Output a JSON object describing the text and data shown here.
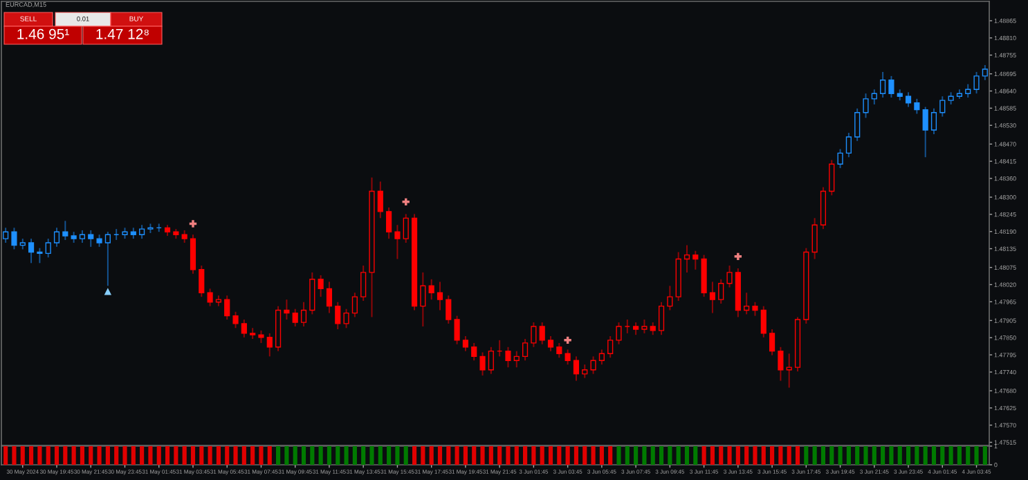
{
  "chart_data": [
    {
      "type": "candlestick",
      "title": "EURCAD,M15",
      "annotations": [
        "SELL",
        "0.01",
        "BUY",
        "1.46 95¹",
        "1.47 12⁸"
      ],
      "categories": [
        null,
        null,
        null,
        null,
        null,
        null,
        null,
        null,
        null,
        null,
        null,
        null,
        null,
        null,
        null,
        null,
        null,
        null,
        null,
        null,
        null,
        null,
        null,
        null,
        null,
        null,
        null,
        null,
        null,
        null,
        null,
        null,
        null,
        null,
        null,
        null,
        null,
        null,
        null,
        null,
        null,
        null,
        null,
        null,
        null,
        null,
        null,
        null,
        null,
        null,
        null,
        null,
        null,
        null,
        null,
        null,
        null,
        null,
        null,
        null,
        null,
        null,
        null,
        null,
        null,
        null,
        null,
        null,
        null,
        null,
        null,
        null,
        null,
        null,
        null,
        null,
        null,
        null,
        null,
        null,
        null,
        null,
        null,
        null,
        null,
        null,
        null,
        null,
        null,
        null,
        null,
        null,
        null,
        null,
        null,
        null,
        null,
        null,
        null,
        null,
        null,
        null,
        null,
        null,
        null,
        null,
        null,
        null,
        null,
        null,
        null,
        null,
        null,
        null,
        null,
        null
      ],
      "ohlc": [
        [
          1.48167,
          1.48202,
          1.48154,
          1.48189
        ],
        [
          1.48189,
          1.48202,
          1.48133,
          1.48146
        ],
        [
          1.48146,
          1.48167,
          1.48133,
          1.48154
        ],
        [
          1.48154,
          1.48167,
          1.48089,
          1.48124
        ],
        [
          1.48124,
          1.48137,
          1.48089,
          1.4812
        ],
        [
          1.4812,
          1.48167,
          1.48107,
          1.48154
        ],
        [
          1.48154,
          1.48202,
          1.48141,
          1.48189
        ],
        [
          1.48189,
          1.48224,
          1.48163,
          1.48176
        ],
        [
          1.48176,
          1.48189,
          1.48154,
          1.48167
        ],
        [
          1.48167,
          1.48194,
          1.48154,
          1.4818
        ],
        [
          1.4818,
          1.48194,
          1.48141,
          1.48167
        ],
        [
          1.48167,
          1.4818,
          1.48141,
          1.48154
        ],
        [
          1.48154,
          1.48189,
          1.48016,
          1.4818
        ],
        [
          1.4818,
          1.48198,
          1.48163,
          1.4818
        ],
        [
          1.4818,
          1.48202,
          1.48167,
          1.48189
        ],
        [
          1.48189,
          1.48202,
          1.48167,
          1.4818
        ],
        [
          1.4818,
          1.48211,
          1.48167,
          1.48198
        ],
        [
          1.48198,
          1.48215,
          1.48185,
          1.48202
        ],
        [
          1.48202,
          1.48215,
          1.48189,
          1.48202
        ],
        [
          1.48202,
          1.48211,
          1.48176,
          1.48189
        ],
        [
          1.48189,
          1.48198,
          1.48167,
          1.4818
        ],
        [
          1.4818,
          1.48194,
          1.48154,
          1.48167
        ],
        [
          1.48167,
          1.4818,
          1.48055,
          1.48068
        ],
        [
          1.48068,
          1.48081,
          1.47981,
          1.47994
        ],
        [
          1.47994,
          1.48007,
          1.47951,
          1.47964
        ],
        [
          1.47964,
          1.47985,
          1.47951,
          1.47972
        ],
        [
          1.47972,
          1.47985,
          1.47908,
          1.4792
        ],
        [
          1.4792,
          1.47933,
          1.47881,
          1.47895
        ],
        [
          1.47895,
          1.47908,
          1.47851,
          1.47864
        ],
        [
          1.47864,
          1.47881,
          1.47846,
          1.47859
        ],
        [
          1.47859,
          1.47873,
          1.47833,
          1.47851
        ],
        [
          1.47851,
          1.47864,
          1.4779,
          1.4782
        ],
        [
          1.4782,
          1.47951,
          1.47807,
          1.47938
        ],
        [
          1.47938,
          1.47972,
          1.47908,
          1.47929
        ],
        [
          1.47929,
          1.47942,
          1.47886,
          1.47899
        ],
        [
          1.47899,
          1.47964,
          1.47886,
          1.47938
        ],
        [
          1.47938,
          1.48059,
          1.47925,
          1.48037
        ],
        [
          1.48037,
          1.4805,
          1.47981,
          1.48007
        ],
        [
          1.48007,
          1.48029,
          1.47929,
          1.47951
        ],
        [
          1.47951,
          1.47964,
          1.47877,
          1.47895
        ],
        [
          1.47895,
          1.47942,
          1.47881,
          1.47929
        ],
        [
          1.47929,
          1.47994,
          1.47916,
          1.47981
        ],
        [
          1.47981,
          1.48081,
          1.47968,
          1.48059
        ],
        [
          1.48059,
          1.48363,
          1.47916,
          1.48319
        ],
        [
          1.48319,
          1.4835,
          1.48233,
          1.48254
        ],
        [
          1.48254,
          1.48267,
          1.48167,
          1.48189
        ],
        [
          1.48189,
          1.48211,
          1.48102,
          1.48167
        ],
        [
          1.48167,
          1.48246,
          1.48154,
          1.48233
        ],
        [
          1.48233,
          1.48246,
          1.47938,
          1.47951
        ],
        [
          1.47951,
          1.48059,
          1.47886,
          1.48016
        ],
        [
          1.48016,
          1.48037,
          1.47972,
          1.47994
        ],
        [
          1.47994,
          1.48029,
          1.47938,
          1.47972
        ],
        [
          1.47972,
          1.47985,
          1.47895,
          1.47908
        ],
        [
          1.47908,
          1.4792,
          1.47829,
          1.47842
        ],
        [
          1.47842,
          1.47855,
          1.47807,
          1.4782
        ],
        [
          1.4782,
          1.47833,
          1.47777,
          1.4779
        ],
        [
          1.4779,
          1.47803,
          1.47729,
          1.47747
        ],
        [
          1.47747,
          1.4782,
          1.47734,
          1.47807
        ],
        [
          1.47807,
          1.47842,
          1.4779,
          1.47807
        ],
        [
          1.47807,
          1.4782,
          1.47755,
          1.47777
        ],
        [
          1.47777,
          1.47807,
          1.47755,
          1.4779
        ],
        [
          1.4779,
          1.47846,
          1.47777,
          1.47833
        ],
        [
          1.47833,
          1.47899,
          1.4782,
          1.47886
        ],
        [
          1.47886,
          1.47899,
          1.47829,
          1.47842
        ],
        [
          1.47842,
          1.47855,
          1.47807,
          1.4782
        ],
        [
          1.4782,
          1.47833,
          1.47786,
          1.47799
        ],
        [
          1.47799,
          1.47812,
          1.47764,
          1.47777
        ],
        [
          1.47777,
          1.4779,
          1.47712,
          1.47734
        ],
        [
          1.47734,
          1.47764,
          1.47721,
          1.47747
        ],
        [
          1.47747,
          1.4779,
          1.47734,
          1.47777
        ],
        [
          1.47777,
          1.47812,
          1.47764,
          1.47799
        ],
        [
          1.47799,
          1.47855,
          1.47786,
          1.47842
        ],
        [
          1.47842,
          1.47899,
          1.47829,
          1.47886
        ],
        [
          1.47886,
          1.47908,
          1.47864,
          1.47886
        ],
        [
          1.47886,
          1.47899,
          1.47859,
          1.47877
        ],
        [
          1.47877,
          1.47908,
          1.47864,
          1.47886
        ],
        [
          1.47886,
          1.47899,
          1.47859,
          1.47873
        ],
        [
          1.47873,
          1.47964,
          1.47859,
          1.47951
        ],
        [
          1.47951,
          1.48016,
          1.47938,
          1.47981
        ],
        [
          1.47981,
          1.48124,
          1.47968,
          1.48102
        ],
        [
          1.48102,
          1.48146,
          1.48059,
          1.48115
        ],
        [
          1.48115,
          1.48128,
          1.48068,
          1.48102
        ],
        [
          1.48102,
          1.48115,
          1.47981,
          1.47994
        ],
        [
          1.47994,
          1.48029,
          1.47929,
          1.47972
        ],
        [
          1.47972,
          1.48037,
          1.47959,
          1.48024
        ],
        [
          1.48024,
          1.48081,
          1.48011,
          1.48059
        ],
        [
          1.48059,
          1.48072,
          1.47916,
          1.47938
        ],
        [
          1.47938,
          1.47994,
          1.47925,
          1.47951
        ],
        [
          1.47951,
          1.47964,
          1.4792,
          1.47938
        ],
        [
          1.47938,
          1.47951,
          1.47851,
          1.47864
        ],
        [
          1.47864,
          1.47877,
          1.47794,
          1.47807
        ],
        [
          1.47807,
          1.4782,
          1.47712,
          1.47747
        ],
        [
          1.47747,
          1.47799,
          1.4769,
          1.47755
        ],
        [
          1.47755,
          1.47916,
          1.47742,
          1.47908
        ],
        [
          1.47908,
          1.48137,
          1.47895,
          1.48124
        ],
        [
          1.48124,
          1.48233,
          1.48102,
          1.48211
        ],
        [
          1.48211,
          1.48332,
          1.48198,
          1.48319
        ],
        [
          1.48319,
          1.48419,
          1.48306,
          1.48406
        ],
        [
          1.48406,
          1.48454,
          1.48393,
          1.48441
        ],
        [
          1.48441,
          1.48506,
          1.48428,
          1.48493
        ],
        [
          1.48493,
          1.48584,
          1.4848,
          1.48571
        ],
        [
          1.48571,
          1.48632,
          1.48554,
          1.48615
        ],
        [
          1.48615,
          1.48645,
          1.48597,
          1.48632
        ],
        [
          1.48632,
          1.48701,
          1.48619,
          1.48675
        ],
        [
          1.48675,
          1.48688,
          1.48619,
          1.48632
        ],
        [
          1.48632,
          1.48645,
          1.4861,
          1.48623
        ],
        [
          1.48623,
          1.48636,
          1.48589,
          1.48602
        ],
        [
          1.48602,
          1.48615,
          1.48567,
          1.4858
        ],
        [
          1.4858,
          1.48589,
          1.48428,
          1.48515
        ],
        [
          1.48515,
          1.48584,
          1.48502,
          1.48571
        ],
        [
          1.48571,
          1.48623,
          1.48558,
          1.4861
        ],
        [
          1.4861,
          1.48636,
          1.48597,
          1.48623
        ],
        [
          1.48623,
          1.48645,
          1.48615,
          1.48632
        ],
        [
          1.48632,
          1.48662,
          1.48619,
          1.48645
        ],
        [
          1.48645,
          1.48701,
          1.48632,
          1.48688
        ],
        [
          1.48688,
          1.48723,
          1.48675,
          1.4871
        ]
      ],
      "colors": [
        "#1e90ff",
        "#1e90ff",
        "#1e90ff",
        "#1e90ff",
        "#1e90ff",
        "#1e90ff",
        "#1e90ff",
        "#1e90ff",
        "#1e90ff",
        "#1e90ff",
        "#1e90ff",
        "#1e90ff",
        "#1e90ff",
        "#1e90ff",
        "#1e90ff",
        "#1e90ff",
        "#1e90ff",
        "#1e90ff",
        "#1e90ff",
        "#ff0000",
        "#ff0000",
        "#ff0000",
        "#ff0000",
        "#ff0000",
        "#ff0000",
        "#ff0000",
        "#ff0000",
        "#ff0000",
        "#ff0000",
        "#ff0000",
        "#ff0000",
        "#ff0000",
        "#ff0000",
        "#ff0000",
        "#ff0000",
        "#ff0000",
        "#ff0000",
        "#ff0000",
        "#ff0000",
        "#ff0000",
        "#ff0000",
        "#ff0000",
        "#ff0000",
        "#ff0000",
        "#ff0000",
        "#ff0000",
        "#ff0000",
        "#ff0000",
        "#ff0000",
        "#ff0000",
        "#ff0000",
        "#ff0000",
        "#ff0000",
        "#ff0000",
        "#ff0000",
        "#ff0000",
        "#ff0000",
        "#ff0000",
        "#ff0000",
        "#ff0000",
        "#ff0000",
        "#ff0000",
        "#ff0000",
        "#ff0000",
        "#ff0000",
        "#ff0000",
        "#ff0000",
        "#ff0000",
        "#ff0000",
        "#ff0000",
        "#ff0000",
        "#ff0000",
        "#ff0000",
        "#ff0000",
        "#ff0000",
        "#ff0000",
        "#ff0000",
        "#ff0000",
        "#ff0000",
        "#ff0000",
        "#ff0000",
        "#ff0000",
        "#ff0000",
        "#ff0000",
        "#ff0000",
        "#ff0000",
        "#ff0000",
        "#ff0000",
        "#ff0000",
        "#ff0000",
        "#ff0000",
        "#ff0000",
        "#ff0000",
        "#ff0000",
        "#ff0000",
        "#ff0000",
        "#ff0000",
        "#ff0000",
        "#1e90ff",
        "#1e90ff",
        "#1e90ff",
        "#1e90ff",
        "#1e90ff",
        "#1e90ff",
        "#1e90ff",
        "#1e90ff",
        "#1e90ff",
        "#1e90ff",
        "#1e90ff",
        "#1e90ff",
        "#1e90ff",
        "#1e90ff",
        "#1e90ff",
        "#1e90ff",
        "#1e90ff",
        "#1e90ff"
      ],
      "series": [
        {
          "type": "scatter",
          "values": [
            null,
            null,
            null,
            null,
            null,
            null,
            null,
            null,
            null,
            null,
            null,
            null,
            1.47998,
            null,
            null,
            null,
            null,
            null,
            null,
            null,
            null,
            null,
            null,
            null,
            null,
            null,
            null,
            null,
            null,
            null,
            null,
            null,
            null,
            null,
            null,
            null,
            null,
            null,
            null,
            null,
            null,
            null,
            null,
            null,
            null,
            null,
            null,
            null,
            null,
            null,
            null,
            null,
            null,
            null,
            null,
            null,
            null,
            null,
            null,
            null,
            null,
            null,
            null,
            null,
            null,
            null,
            null,
            null,
            null,
            null,
            null,
            null,
            null,
            null,
            null,
            null,
            null,
            null,
            null,
            null,
            null,
            null,
            null,
            null,
            null,
            null,
            null,
            null,
            null,
            null,
            null,
            null,
            null,
            null,
            null,
            null,
            null,
            null,
            null,
            null,
            null,
            null,
            null,
            null,
            null,
            null,
            null,
            null,
            null,
            null,
            null,
            null,
            null,
            null,
            null,
            null
          ],
          "color": "#87cefa",
          "marker": "triangle"
        },
        {
          "type": "scatter",
          "values": [
            null,
            null,
            null,
            null,
            null,
            null,
            null,
            null,
            null,
            null,
            null,
            null,
            null,
            null,
            null,
            null,
            null,
            null,
            null,
            null,
            null,
            null,
            1.48215,
            null,
            null,
            null,
            null,
            null,
            null,
            null,
            null,
            null,
            null,
            null,
            null,
            null,
            null,
            null,
            null,
            null,
            null,
            null,
            null,
            null,
            null,
            null,
            null,
            1.48285,
            null,
            null,
            null,
            null,
            null,
            null,
            null,
            null,
            null,
            null,
            null,
            null,
            null,
            null,
            null,
            null,
            null,
            null,
            1.47842,
            null,
            null,
            null,
            null,
            null,
            null,
            null,
            null,
            null,
            null,
            null,
            null,
            null,
            null,
            null,
            null,
            null,
            null,
            null,
            1.4811,
            null,
            null,
            null,
            null,
            null,
            null,
            null,
            null,
            null,
            null,
            null,
            null,
            null,
            null,
            null,
            null,
            null,
            null,
            null,
            null,
            null,
            null,
            null,
            null,
            null,
            null,
            null,
            null,
            null
          ],
          "color": "#f08080",
          "marker": "cross"
        }
      ],
      "ylim": [
        1.47505,
        1.48927
      ],
      "yticks": [
        1.48865,
        {
          "value": 1.4881,
          "label": "1.48810"
        },
        1.48755,
        1.48695,
        {
          "value": 1.4864,
          "label": "1.48640"
        },
        1.48585,
        {
          "value": 1.4853,
          "label": "1.48530"
        },
        {
          "value": 1.4847,
          "label": "1.48470"
        },
        1.48415,
        {
          "value": 1.4836,
          "label": "1.48360"
        },
        {
          "value": 1.483,
          "label": "1.48300"
        },
        1.48245,
        {
          "value": 1.4819,
          "label": "1.48190"
        },
        1.48135,
        1.48075,
        {
          "value": 1.4802,
          "label": "1.48020"
        },
        1.47965,
        1.47905,
        {
          "value": 1.4785,
          "label": "1.47850"
        },
        1.47795,
        {
          "value": 1.4774,
          "label": "1.47740"
        },
        {
          "value": 1.4768,
          "label": "1.47680"
        },
        1.47625,
        {
          "value": 1.4757,
          "label": "1.47570"
        },
        1.47515
      ],
      "tick_labels": "y"
    },
    {
      "type": "bar",
      "categories": [
        null,
        null,
        "30 May 2024",
        null,
        null,
        null,
        "30 May 19:45",
        null,
        null,
        null,
        "30 May 21:45",
        null,
        null,
        null,
        "30 May 23:45",
        null,
        null,
        null,
        "31 May 01:45",
        null,
        null,
        null,
        "31 May 03:45",
        null,
        null,
        null,
        "31 May 05:45",
        null,
        null,
        null,
        "31 May 07:45",
        null,
        null,
        null,
        "31 May 09:45",
        null,
        null,
        null,
        "31 May 11:45",
        null,
        null,
        null,
        "31 May 13:45",
        null,
        null,
        null,
        "31 May 15:45",
        null,
        null,
        null,
        "31 May 17:45",
        null,
        null,
        null,
        "31 May 19:45",
        null,
        null,
        null,
        "31 May 21:45",
        null,
        null,
        null,
        "3 Jun 01:45",
        null,
        null,
        null,
        "3 Jun 03:45",
        null,
        null,
        null,
        "3 Jun 05:45",
        null,
        null,
        null,
        "3 Jun 07:45",
        null,
        null,
        null,
        "3 Jun 09:45",
        null,
        null,
        null,
        "3 Jun 11:45",
        null,
        null,
        null,
        "3 Jun 13:45",
        null,
        null,
        null,
        "3 Jun 15:45",
        null,
        null,
        null,
        "3 Jun 17:45",
        null,
        null,
        null,
        "3 Jun 19:45",
        null,
        null,
        null,
        "3 Jun 21:45",
        null,
        null,
        null,
        "3 Jun 23:45",
        null,
        null,
        null,
        "4 Jun 01:45",
        null,
        null,
        null,
        "4 Jun 03:45",
        null
      ],
      "values": [
        1,
        1,
        1,
        1,
        1,
        1,
        1,
        1,
        1,
        1,
        1,
        1,
        1,
        1,
        1,
        1,
        1,
        1,
        1,
        1,
        1,
        1,
        1,
        1,
        1,
        1,
        1,
        1,
        1,
        1,
        1,
        1,
        1,
        1,
        1,
        1,
        1,
        1,
        1,
        1,
        1,
        1,
        1,
        1,
        1,
        1,
        1,
        1,
        1,
        1,
        1,
        1,
        1,
        1,
        1,
        1,
        1,
        1,
        1,
        1,
        1,
        1,
        1,
        1,
        1,
        1,
        1,
        1,
        1,
        1,
        1,
        1,
        1,
        1,
        1,
        1,
        1,
        1,
        1,
        1,
        1,
        1,
        1,
        1,
        1,
        1,
        1,
        1,
        1,
        1,
        1,
        1,
        1,
        1,
        1,
        1,
        1,
        1,
        1,
        1,
        1,
        1,
        1,
        1,
        1,
        1,
        1,
        1,
        1,
        1,
        1,
        1,
        1,
        1,
        1,
        1
      ],
      "colors": [
        "#e00000",
        "#e00000",
        "#e00000",
        "#e00000",
        "#e00000",
        "#e00000",
        "#e00000",
        "#e00000",
        "#e00000",
        "#e00000",
        "#e00000",
        "#e00000",
        "#e00000",
        "#e00000",
        "#e00000",
        "#e00000",
        "#e00000",
        "#e00000",
        "#e00000",
        "#e00000",
        "#e00000",
        "#e00000",
        "#e00000",
        "#e00000",
        "#e00000",
        "#e00000",
        "#e00000",
        "#e00000",
        "#e00000",
        "#e00000",
        "#e00000",
        "#e00000",
        "#007a00",
        "#007a00",
        "#007a00",
        "#007a00",
        "#007a00",
        "#007a00",
        "#007a00",
        "#007a00",
        "#007a00",
        "#007a00",
        "#007a00",
        "#007a00",
        "#007a00",
        "#007a00",
        "#007a00",
        "#007a00",
        "#e00000",
        "#e00000",
        "#e00000",
        "#e00000",
        "#e00000",
        "#e00000",
        "#e00000",
        "#e00000",
        "#e00000",
        "#e00000",
        "#e00000",
        "#e00000",
        "#e00000",
        "#e00000",
        "#e00000",
        "#e00000",
        "#e00000",
        "#e00000",
        "#e00000",
        "#e00000",
        "#e00000",
        "#e00000",
        "#e00000",
        "#e00000",
        "#007a00",
        "#007a00",
        "#007a00",
        "#007a00",
        "#007a00",
        "#007a00",
        "#007a00",
        "#007a00",
        "#007a00",
        "#007a00",
        "#e00000",
        "#e00000",
        "#e00000",
        "#e00000",
        "#e00000",
        "#e00000",
        "#e00000",
        "#e00000",
        "#e00000",
        "#e00000",
        "#e00000",
        "#e00000",
        "#007a00",
        "#007a00",
        "#007a00",
        "#007a00",
        "#007a00",
        "#007a00",
        "#007a00",
        "#007a00",
        "#007a00",
        "#007a00",
        "#007a00",
        "#007a00",
        "#007a00",
        "#007a00",
        "#007a00",
        "#007a00",
        "#007a00",
        "#007a00",
        "#007a00",
        "#007a00",
        "#007a00",
        "#007a00"
      ],
      "ylim": [
        0,
        1
      ],
      "yticks": [
        0,
        1
      ]
    }
  ]
}
